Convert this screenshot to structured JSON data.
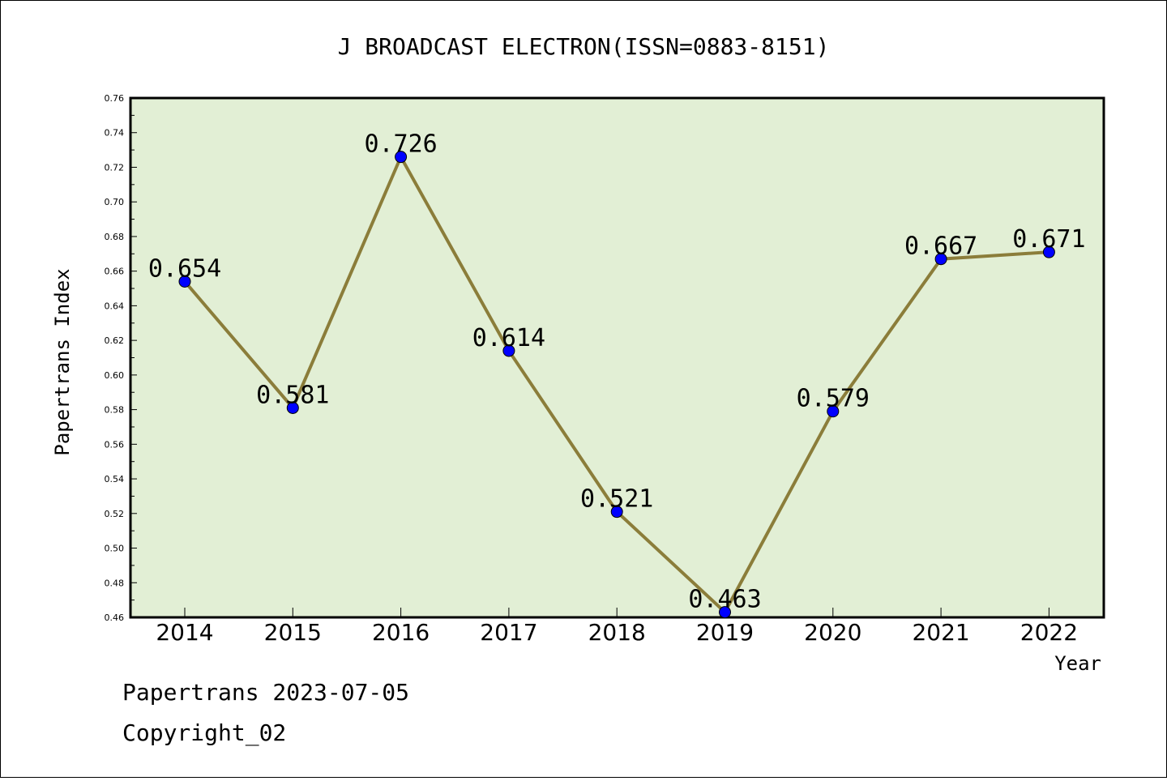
{
  "chart_data": {
    "type": "line",
    "title": "J BROADCAST ELECTRON(ISSN=0883-8151)",
    "xlabel": "Year",
    "ylabel": "Papertrans Index",
    "categories": [
      "2014",
      "2015",
      "2016",
      "2017",
      "2018",
      "2019",
      "2020",
      "2021",
      "2022"
    ],
    "values": [
      0.654,
      0.581,
      0.726,
      0.614,
      0.521,
      0.463,
      0.579,
      0.667,
      0.671
    ],
    "data_labels": [
      "0.654",
      "0.581",
      "0.726",
      "0.614",
      "0.521",
      "0.463",
      "0.579",
      "0.667",
      "0.671"
    ],
    "ylim": [
      0.46,
      0.76
    ],
    "yticks": [
      "0.46",
      "0.48",
      "0.50",
      "0.52",
      "0.54",
      "0.56",
      "0.58",
      "0.60",
      "0.62",
      "0.64",
      "0.66",
      "0.68",
      "0.70",
      "0.72",
      "0.74",
      "0.76"
    ],
    "grid": false,
    "plot_background": "#e2efd5",
    "line_color": "#8b7d3a",
    "marker_color": "#0000ff"
  },
  "footer": {
    "line1": "Papertrans 2023-07-05",
    "line2": "Copyright_02"
  }
}
